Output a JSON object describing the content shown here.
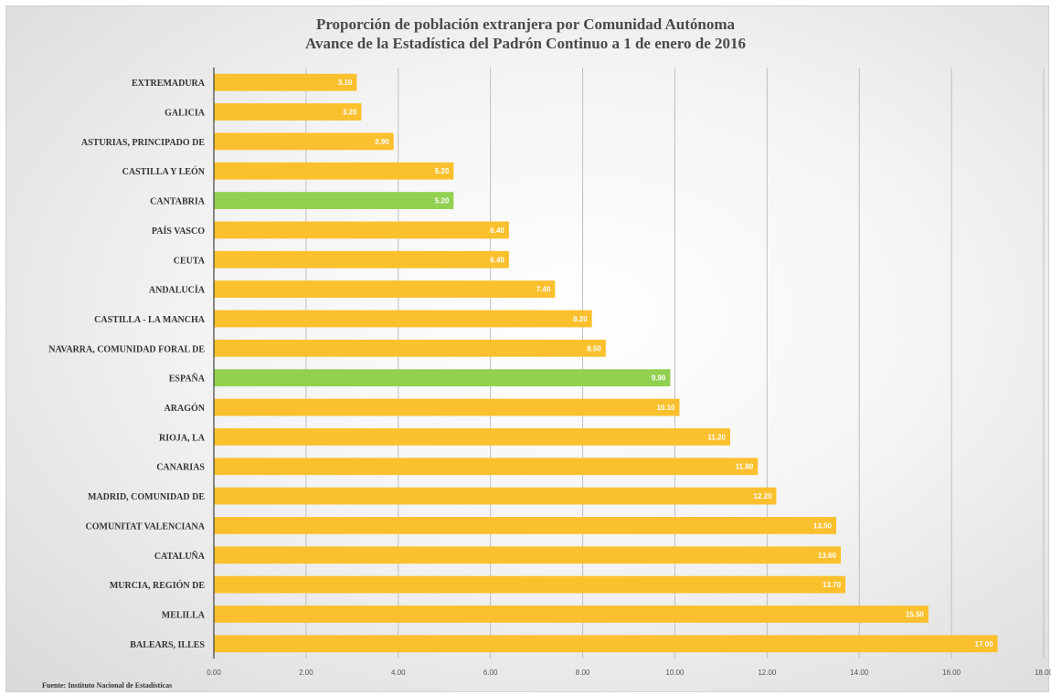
{
  "chart_data": {
    "type": "bar",
    "orientation": "horizontal",
    "title": "Proporción de población extranjera por Comunidad Autónoma",
    "subtitle": "Avance de la Estadística del Padrón Continuo a 1 de enero de 2016",
    "source": "Fuente: Instituto Nacional de Estadísticas",
    "categories": [
      "EXTREMADURA",
      "GALICIA",
      "ASTURIAS, PRINCIPADO DE",
      "CASTILLA Y LEÓN",
      "CANTABRIA",
      "PAÍS VASCO",
      "CEUTA",
      "ANDALUCÍA",
      "CASTILLA - LA MANCHA",
      "NAVARRA, COMUNIDAD FORAL DE",
      "ESPAÑA",
      "ARAGÓN",
      "RIOJA, LA",
      "CANARIAS",
      "MADRID, COMUNIDAD DE",
      "COMUNITAT VALENCIANA",
      "CATALUÑA",
      "MURCIA, REGIÓN DE",
      "MELILLA",
      "BALEARS, ILLES"
    ],
    "values": [
      3.1,
      3.2,
      3.9,
      5.2,
      5.2,
      6.4,
      6.4,
      7.4,
      8.2,
      8.5,
      9.9,
      10.1,
      11.2,
      11.8,
      12.2,
      13.5,
      13.6,
      13.7,
      15.5,
      17.0
    ],
    "value_labels": [
      "3.10",
      "3.20",
      "3.90",
      "5.20",
      "5.20",
      "6.40",
      "6.40",
      "7.40",
      "8.20",
      "8.50",
      "9.90",
      "10.10",
      "11.20",
      "11.80",
      "12.20",
      "13.50",
      "13.60",
      "13.70",
      "15.50",
      "17.00"
    ],
    "highlighted": [
      "CANTABRIA",
      "ESPAÑA"
    ],
    "colors": {
      "bar": "#fbc02d",
      "highlight": "#92d050",
      "grid": "#bfbfbf",
      "axis": "#404040",
      "label_text": "#333333",
      "value_text": "#ffffff"
    },
    "xlim": [
      0,
      18
    ],
    "xticks": [
      "0.00",
      "2.00",
      "4.00",
      "6.00",
      "8.00",
      "10.00",
      "12.00",
      "14.00",
      "16.00",
      "18.00"
    ],
    "xtick_values": [
      0,
      2,
      4,
      6,
      8,
      10,
      12,
      14,
      16,
      18
    ],
    "grid": true,
    "legend": "none"
  }
}
